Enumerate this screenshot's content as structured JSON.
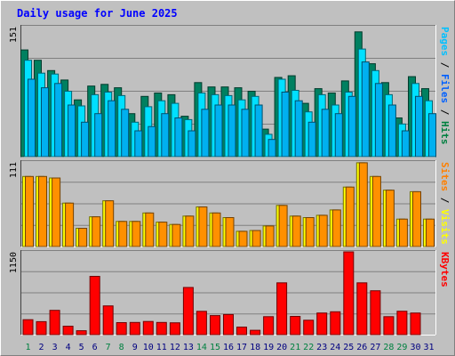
{
  "chart_data": {
    "type": "bar",
    "title": "Daily usage for June 2025",
    "x": [
      "1",
      "2",
      "3",
      "4",
      "5",
      "6",
      "7",
      "8",
      "9",
      "10",
      "11",
      "12",
      "13",
      "14",
      "15",
      "16",
      "17",
      "18",
      "19",
      "20",
      "21",
      "22",
      "23",
      "24",
      "25",
      "26",
      "27",
      "28",
      "29",
      "30",
      "31"
    ],
    "weekend_days": [
      1,
      7,
      8,
      14,
      15,
      21,
      22,
      28,
      29
    ],
    "panels": [
      {
        "name": "hits-files-pages",
        "ymax": 151,
        "ymax_label": "151",
        "right_label": [
          {
            "text": "Pages",
            "color": "#00c0ff"
          },
          {
            "text": " / ",
            "color": "#000000"
          },
          {
            "text": "Files",
            "color": "#0060ff"
          },
          {
            "text": " / ",
            "color": "#000000"
          },
          {
            "text": "Hits",
            "color": "#008040"
          }
        ],
        "series": [
          {
            "name": "Hits",
            "color": "#008060",
            "values": [
              124,
              112,
              100,
              89,
              66,
              82,
              84,
              80,
              50,
              70,
              74,
              72,
              47,
              86,
              81,
              81,
              80,
              76,
              32,
              92,
              94,
              62,
              79,
              74,
              88,
              145,
              108,
              86,
              45,
              93,
              79
            ]
          },
          {
            "name": "Files",
            "color": "#00e0ff",
            "values": [
              112,
              97,
              96,
              76,
              59,
              72,
              75,
              71,
              40,
              58,
              65,
              62,
              43,
              74,
              72,
              71,
              66,
              70,
              26,
              90,
              77,
              52,
              72,
              60,
              75,
              125,
              100,
              72,
              38,
              85,
              65
            ]
          },
          {
            "name": "Pages",
            "color": "#00b0f0",
            "values": [
              90,
              80,
              85,
              60,
              40,
              50,
              65,
              55,
              30,
              35,
              50,
              45,
              30,
              55,
              60,
              60,
              55,
              60,
              20,
              75,
              65,
              40,
              55,
              50,
              70,
              110,
              85,
              60,
              30,
              70,
              50
            ]
          }
        ]
      },
      {
        "name": "sites-visits",
        "ymax": 111,
        "ymax_label": "111",
        "right_label": [
          {
            "text": "Sites",
            "color": "#ff8000"
          },
          {
            "text": " / ",
            "color": "#000000"
          },
          {
            "text": "Visits",
            "color": "#ffff00"
          }
        ],
        "series": [
          {
            "name": "Visits",
            "color": "#ffff00",
            "values": [
              92,
              92,
              90,
              57,
              24,
              39,
              60,
              33,
              33,
              44,
              32,
              29,
              40,
              52,
              44,
              38,
              20,
              21,
              27,
              54,
              40,
              38,
              41,
              48,
              78,
              110,
              92,
              74,
              36,
              72,
              36
            ]
          },
          {
            "name": "Sites",
            "color": "#ff9000",
            "values": [
              92,
              92,
              90,
              57,
              24,
              39,
              60,
              33,
              33,
              44,
              32,
              29,
              40,
              52,
              44,
              38,
              20,
              21,
              27,
              54,
              40,
              38,
              41,
              48,
              78,
              110,
              92,
              74,
              36,
              72,
              36
            ]
          }
        ]
      },
      {
        "name": "kbytes",
        "ymax": 1150,
        "ymax_label": "1150",
        "right_label": [
          {
            "text": "KBytes",
            "color": "#ff0000"
          }
        ],
        "series": [
          {
            "name": "KBytes",
            "color": "#ff0000",
            "values": [
              208,
              180,
              338,
              118,
              55,
              810,
              400,
              167,
              170,
              183,
              170,
              164,
              655,
              324,
              265,
              280,
              105,
              60,
              250,
              720,
              253,
              200,
              300,
              318,
              1150,
              720,
              610,
              250,
              325,
              300,
              0
            ]
          }
        ]
      }
    ],
    "colors": {
      "plot_bg": "#c0c0c0",
      "grid": "#808080",
      "weekday_label": "#000080",
      "weekend_label": "#008040"
    }
  }
}
